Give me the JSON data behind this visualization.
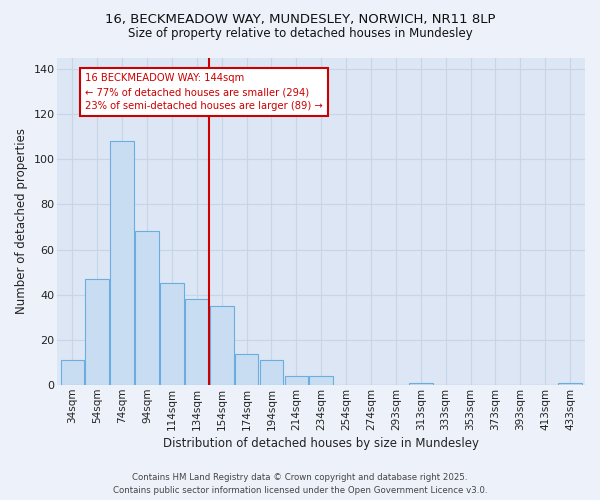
{
  "title_line1": "16, BECKMEADOW WAY, MUNDESLEY, NORWICH, NR11 8LP",
  "title_line2": "Size of property relative to detached houses in Mundesley",
  "xlabel": "Distribution of detached houses by size in Mundesley",
  "ylabel": "Number of detached properties",
  "bar_labels": [
    "34sqm",
    "54sqm",
    "74sqm",
    "94sqm",
    "114sqm",
    "134sqm",
    "154sqm",
    "174sqm",
    "194sqm",
    "214sqm",
    "234sqm",
    "254sqm",
    "274sqm",
    "293sqm",
    "313sqm",
    "333sqm",
    "353sqm",
    "373sqm",
    "393sqm",
    "413sqm",
    "433sqm"
  ],
  "bar_values": [
    11,
    47,
    108,
    68,
    45,
    38,
    35,
    14,
    11,
    4,
    4,
    0,
    0,
    0,
    1,
    0,
    0,
    0,
    0,
    0,
    1
  ],
  "bar_color": "#c9ddf2",
  "bar_edge_color": "#6aaee0",
  "property_line_x": 5.5,
  "annotation_text_line1": "16 BECKMEADOW WAY: 144sqm",
  "annotation_text_line2": "← 77% of detached houses are smaller (294)",
  "annotation_text_line3": "23% of semi-detached houses are larger (89) →",
  "annotation_box_color": "#cc0000",
  "annotation_box_bg": "#ffffff",
  "ylim": [
    0,
    145
  ],
  "yticks": [
    0,
    20,
    40,
    60,
    80,
    100,
    120,
    140
  ],
  "grid_color": "#c8d4e8",
  "bg_color": "#dce6f5",
  "fig_bg_color": "#edf2fa",
  "footer_line1": "Contains HM Land Registry data © Crown copyright and database right 2025.",
  "footer_line2": "Contains public sector information licensed under the Open Government Licence v3.0."
}
